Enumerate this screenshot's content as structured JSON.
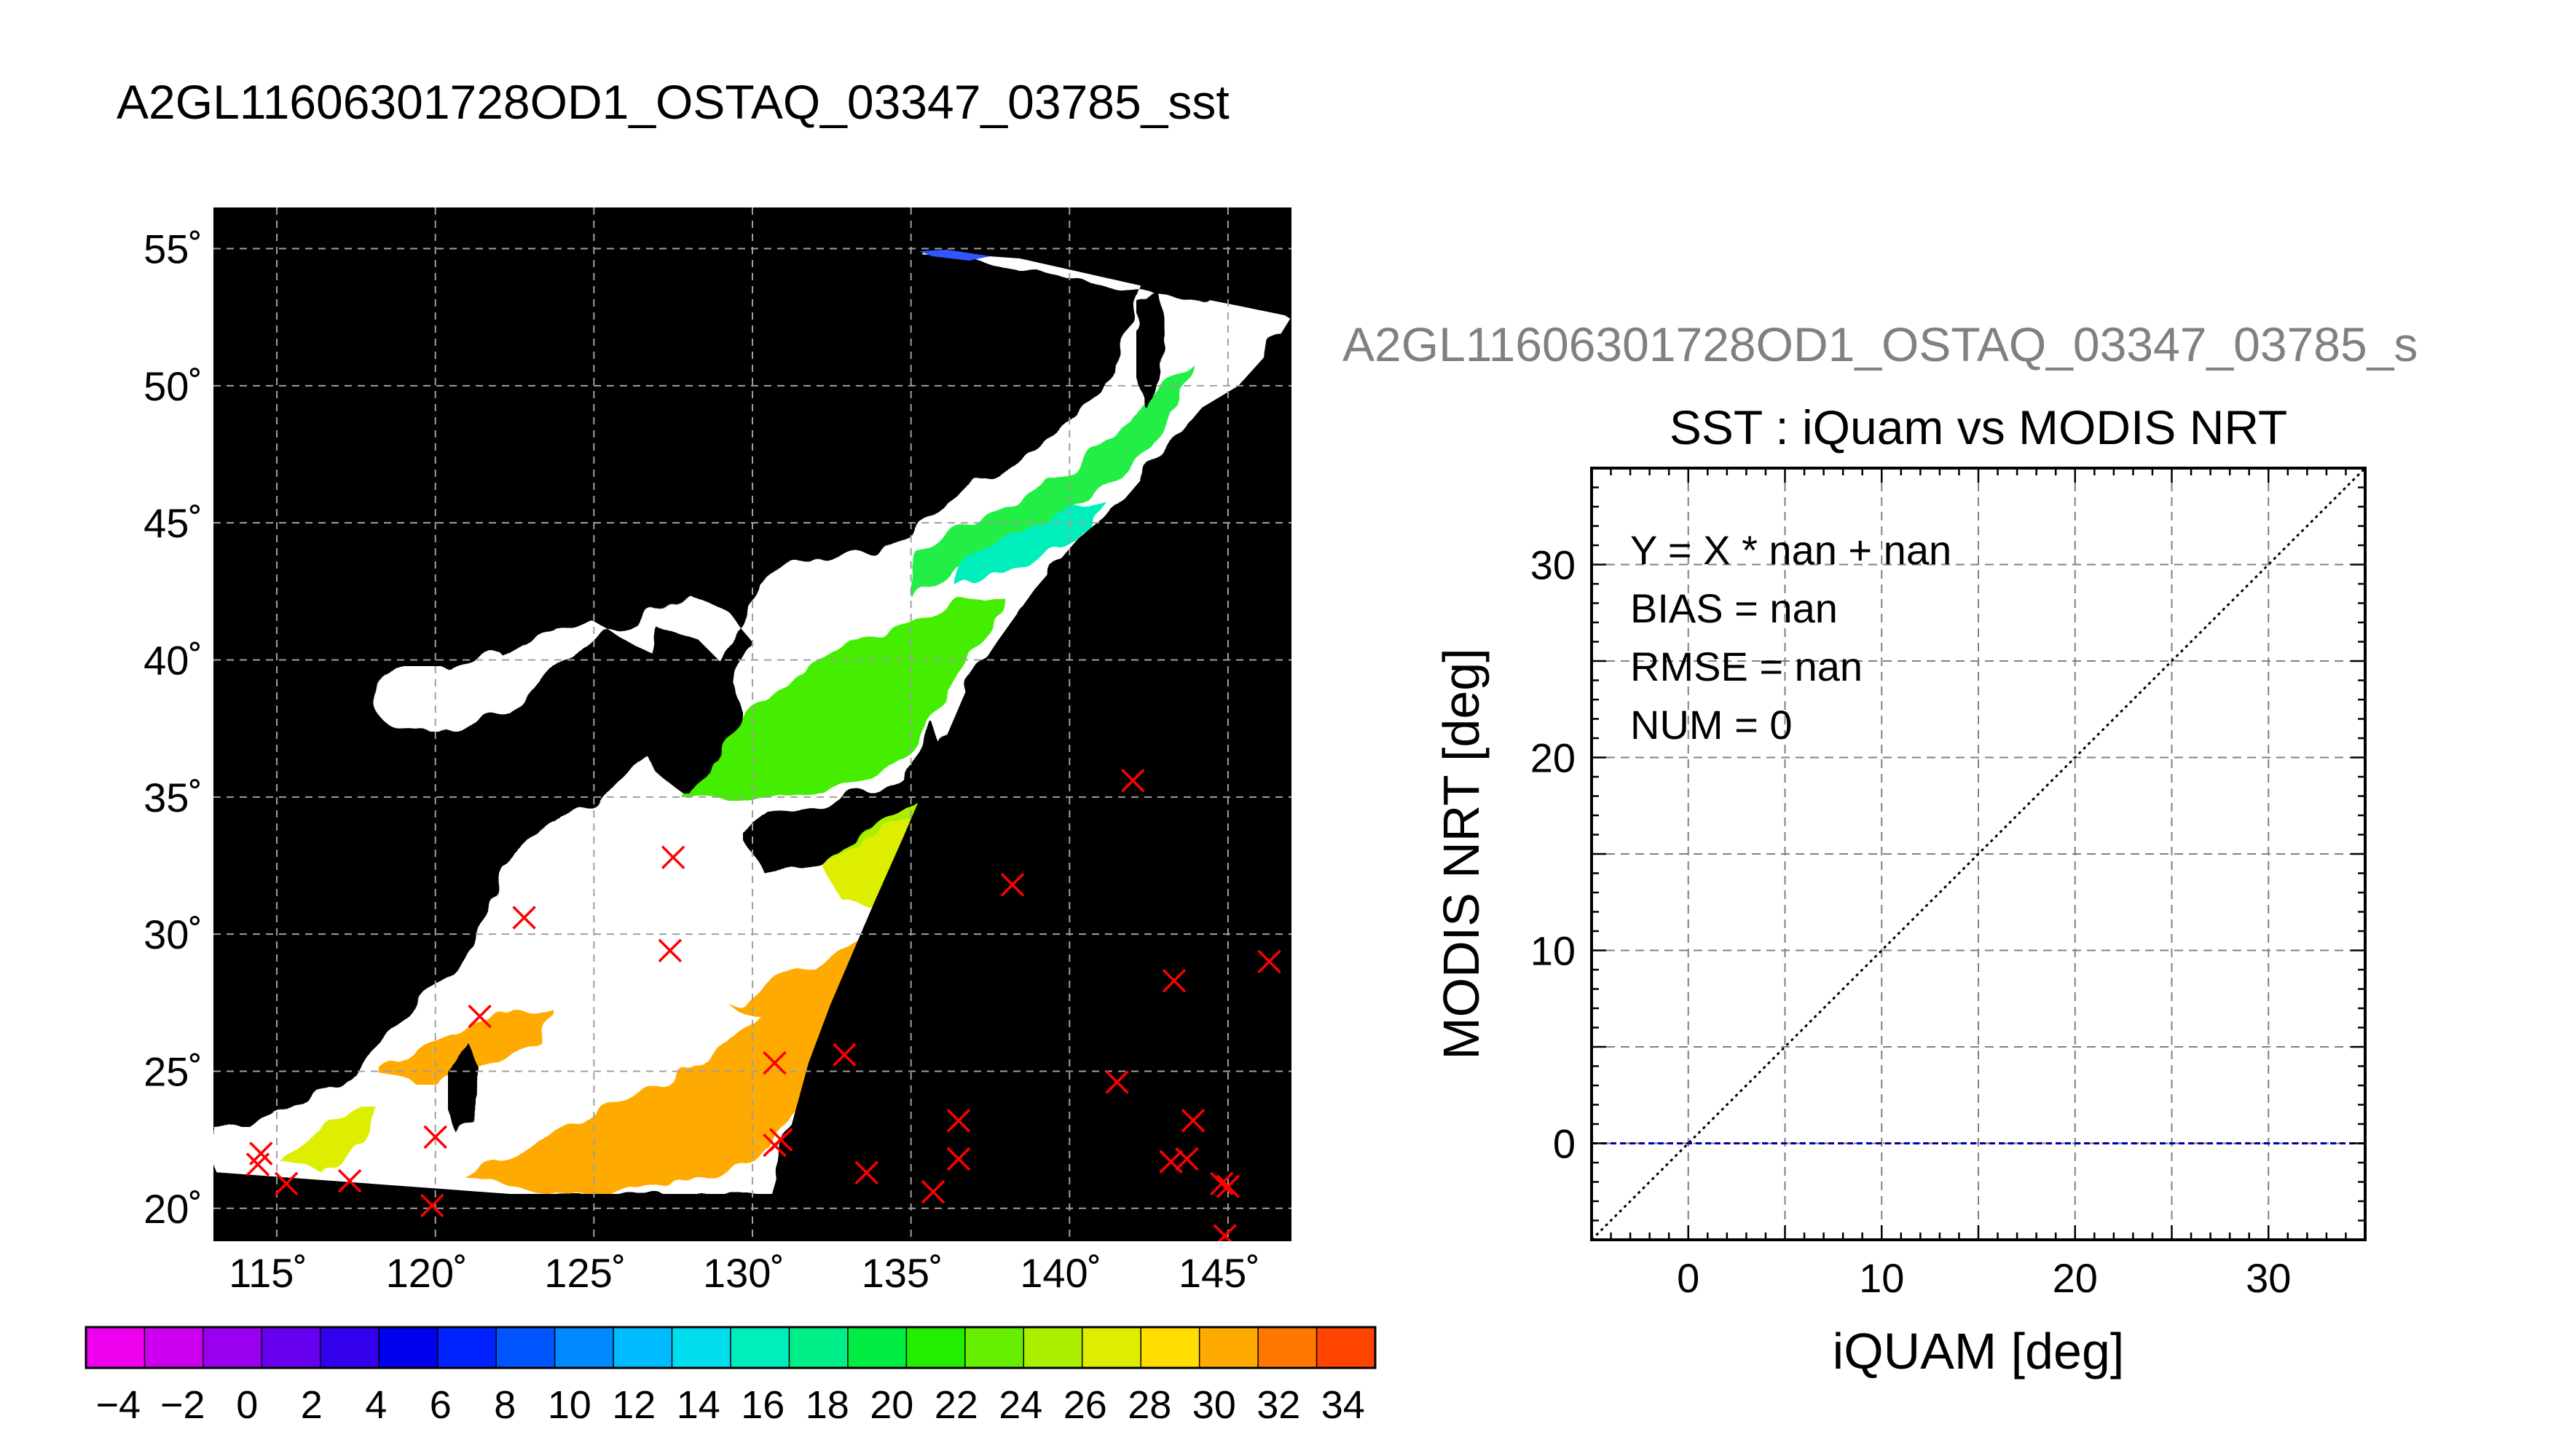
{
  "figure": {
    "title": "A2GL11606301728OD1_OSTAQ_03347_03785_sst",
    "right_title": "A2GL11606301728OD1_OSTAQ_03347_03785_s"
  },
  "chart_data": [
    {
      "type": "map",
      "title": "A2GL11606301728OD1_OSTAQ_03347_03785_sst",
      "lon_range": [
        113,
        147
      ],
      "lat_range": [
        18.8,
        56.5
      ],
      "lon_ticks": [
        115,
        120,
        125,
        130,
        135,
        140,
        145
      ],
      "lon_tick_labels": [
        "115˚",
        "120˚",
        "125˚",
        "130˚",
        "135˚",
        "140˚",
        "145˚"
      ],
      "lat_ticks": [
        20,
        25,
        30,
        35,
        40,
        45,
        50,
        55
      ],
      "lat_tick_labels": [
        "20˚",
        "25˚",
        "30˚",
        "35˚",
        "40˚",
        "45˚",
        "50˚",
        "55˚"
      ],
      "grid": true,
      "markers": {
        "symbol": "x",
        "color": "#ff0000",
        "points": [
          [
            114.5,
            22.0
          ],
          [
            114.4,
            21.6
          ],
          [
            115.3,
            20.9
          ],
          [
            117.3,
            21.0
          ],
          [
            120.0,
            22.6
          ],
          [
            119.9,
            20.1
          ],
          [
            121.4,
            27.0
          ],
          [
            122.8,
            30.6
          ],
          [
            127.5,
            32.8
          ],
          [
            127.4,
            29.4
          ],
          [
            130.7,
            25.3
          ],
          [
            130.9,
            22.5
          ],
          [
            130.7,
            22.3
          ],
          [
            132.9,
            25.6
          ],
          [
            133.6,
            21.3
          ],
          [
            135.7,
            20.6
          ],
          [
            136.5,
            21.8
          ],
          [
            136.5,
            23.2
          ],
          [
            138.2,
            31.8
          ],
          [
            142.0,
            35.6
          ],
          [
            141.5,
            24.6
          ],
          [
            143.3,
            28.3
          ],
          [
            143.2,
            21.7
          ],
          [
            143.7,
            21.8
          ],
          [
            143.9,
            23.2
          ],
          [
            144.8,
            20.9
          ],
          [
            145.0,
            20.8
          ],
          [
            144.9,
            19.0
          ],
          [
            146.3,
            29.0
          ]
        ]
      },
      "colorbar": {
        "range": [
          -5,
          35
        ],
        "tick_values": [
          -4,
          -2,
          0,
          2,
          4,
          6,
          8,
          10,
          12,
          14,
          16,
          18,
          20,
          22,
          24,
          26,
          28,
          30,
          32,
          34
        ],
        "tick_labels": [
          "−4",
          "−2",
          "0",
          "2",
          "4",
          "6",
          "8",
          "10",
          "12",
          "14",
          "16",
          "18",
          "20",
          "22",
          "24",
          "26",
          "28",
          "30",
          "32",
          "34"
        ],
        "colors": [
          "#ee00ee",
          "#cc00ee",
          "#9900ee",
          "#6600ee",
          "#3300ee",
          "#0000ee",
          "#0022ff",
          "#0055ff",
          "#0088ff",
          "#00bbff",
          "#00ddee",
          "#00eebb",
          "#00ee88",
          "#00ee44",
          "#22ee00",
          "#66ee00",
          "#aaee00",
          "#ddee00",
          "#ffdd00",
          "#ffaa00",
          "#ff7700",
          "#ff4400"
        ]
      }
    },
    {
      "type": "scatter",
      "title": "SST : iQuam vs MODIS NRT",
      "xlabel": "iQUAM [deg]",
      "ylabel": "MODIS NRT [deg]",
      "xlim": [
        -5,
        35
      ],
      "ylim": [
        -5,
        35
      ],
      "x_ticks": [
        0,
        10,
        20,
        30
      ],
      "y_ticks": [
        0,
        10,
        20,
        30
      ],
      "grid": true,
      "x": [],
      "y": [],
      "reference_lines": [
        {
          "kind": "identity",
          "style": "dotted",
          "color": "#000000"
        },
        {
          "kind": "horizontal",
          "y": 0,
          "style": "dashed",
          "color": "#0000aa"
        }
      ],
      "annotations": [
        "Y = X * nan + nan",
        "BIAS = nan",
        "RMSE = nan",
        "NUM = 0"
      ]
    }
  ]
}
